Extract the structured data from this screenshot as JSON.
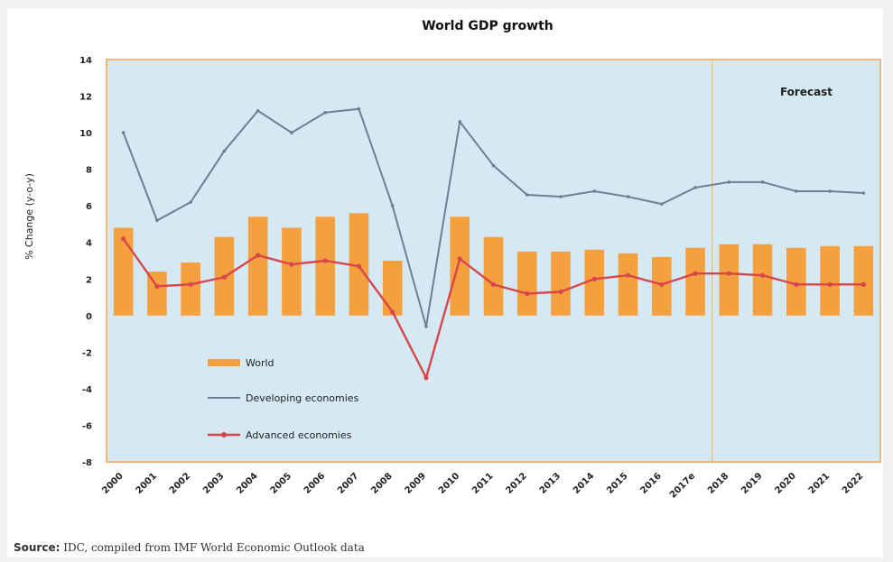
{
  "colors": {
    "plot_background": "#d4e9f3",
    "plot_border": "#f2b872",
    "world_bar": "#f5a03e",
    "developing_line": "#6f7f8f",
    "advanced_line": "#d8454a",
    "forecast_divider": "#f2b872"
  },
  "chart_data": {
    "type": "bar",
    "title": "World GDP growth",
    "ylabel": "% Change (y-o-y)",
    "xlabel": "",
    "ylim": [
      -8,
      14
    ],
    "yticks": [
      14,
      12,
      10,
      8,
      6,
      4,
      2,
      0,
      -2,
      -4,
      -6,
      -8
    ],
    "grid": false,
    "legend_position": "bottom-left, inside plot",
    "categories": [
      "2000",
      "2001",
      "2002",
      "2003",
      "2004",
      "2005",
      "2006",
      "2007",
      "2008",
      "2009",
      "2010",
      "2011",
      "2012",
      "2013",
      "2014",
      "2015",
      "2016",
      "2017e",
      "2018",
      "2019",
      "2020",
      "2021",
      "2022"
    ],
    "forecast_label": "Forecast",
    "forecast_starts_after": "2017e",
    "series": [
      {
        "name": "World",
        "type": "bar",
        "values": [
          4.8,
          2.4,
          2.9,
          4.3,
          5.4,
          4.8,
          5.4,
          5.6,
          3.0,
          0.0,
          5.4,
          4.3,
          3.5,
          3.5,
          3.6,
          3.4,
          3.2,
          3.7,
          3.9,
          3.9,
          3.7,
          3.8,
          3.8
        ]
      },
      {
        "name": "Developing economies",
        "type": "line",
        "values": [
          10.0,
          5.2,
          6.2,
          9.0,
          11.2,
          10.0,
          11.1,
          11.3,
          6.0,
          -0.6,
          10.6,
          8.2,
          6.6,
          6.5,
          6.8,
          6.5,
          6.1,
          7.0,
          7.3,
          7.3,
          6.8,
          6.8,
          6.7
        ]
      },
      {
        "name": "Advanced economies",
        "type": "line",
        "values": [
          4.2,
          1.6,
          1.7,
          2.1,
          3.3,
          2.8,
          3.0,
          2.7,
          0.2,
          -3.4,
          3.1,
          1.7,
          1.2,
          1.3,
          2.0,
          2.2,
          1.7,
          2.3,
          2.3,
          2.2,
          1.7,
          1.7,
          1.7
        ]
      }
    ]
  },
  "source": {
    "label": "Source:",
    "text": " IDC, compiled from IMF World Economic Outlook data"
  }
}
